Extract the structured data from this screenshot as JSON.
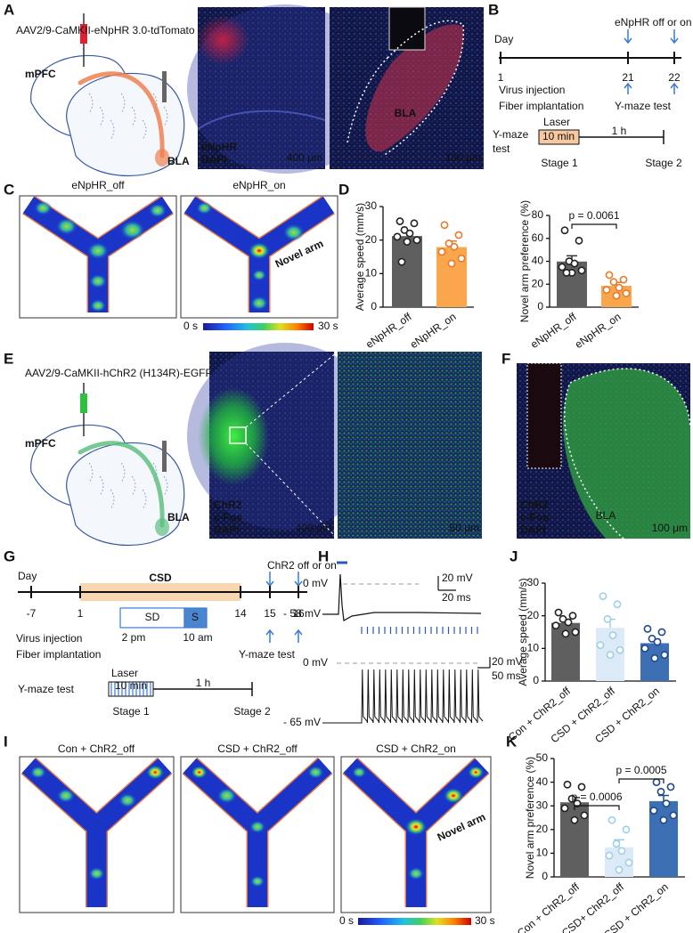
{
  "figure": {
    "A": {
      "label": "A",
      "virus": "AAV2/9-CaMKII-eNpHR 3.0-tdTomato",
      "source": "mPFC",
      "target": "BLA",
      "stains": [
        "eNpHR",
        "DAPI"
      ],
      "scale_low": "400 μm",
      "region": "BLA",
      "scale_high": "100 μm"
    },
    "B": {
      "label": "B",
      "manipulation": "eNpHR off or on",
      "day": "Day",
      "days": [
        1,
        21,
        22
      ],
      "events": [
        "Virus injection",
        "Fiber implantation"
      ],
      "test": "Y-maze test",
      "protocol_title": [
        "Y-maze",
        "test"
      ],
      "laser": "Laser",
      "laser_duration": "10 min",
      "interval": "1 h",
      "stages": [
        "Stage 1",
        "Stage 2"
      ]
    },
    "C": {
      "label": "C",
      "groups": [
        "eNpHR_off",
        "eNpHR_on"
      ],
      "novel_arm": "Novel arm",
      "colorbar": [
        "0 s",
        "30 s"
      ]
    },
    "D": {
      "label": "D"
    },
    "E": {
      "label": "E",
      "virus": "AAV2/9-CaMKII-hChR2 (H134R)-EGFP",
      "source": "mPFC",
      "target": "BLA",
      "stains": [
        "ChR2",
        "c-Fos",
        "DAPI"
      ],
      "scale_low": "400 μm",
      "scale_high": "50 μm"
    },
    "F": {
      "label": "F",
      "stains": [
        "ChR2",
        "c-Fos",
        "DAPI"
      ],
      "region": "BLA",
      "scale": "100 μm"
    },
    "G": {
      "label": "G",
      "day": "Day",
      "stress": "CSD",
      "manipulation": "ChR2 off or on",
      "days": [
        -7,
        1,
        14,
        15,
        16
      ],
      "sd": "SD",
      "s": "S",
      "times": [
        "2 pm",
        "10 am"
      ],
      "events": [
        "Virus injection",
        "Fiber implantation"
      ],
      "test": "Y-maze test",
      "protocol_title": "Y-maze test",
      "laser": "Laser",
      "laser_duration": "10 min",
      "interval": "1 h",
      "stages": [
        "Stage 1",
        "Stage 2"
      ]
    },
    "H": {
      "label": "H",
      "top_trace": {
        "zero": "0 mV",
        "rest": "- 58 mV",
        "scale_v": "20 mV",
        "scale_t": "20 ms"
      },
      "bottom_trace": {
        "zero": "0 mV",
        "rest": "- 65 mV",
        "scale_v": "20 mV",
        "scale_t": "50 ms"
      }
    },
    "I": {
      "label": "I",
      "groups": [
        "Con + ChR2_off",
        "CSD + ChR2_off",
        "CSD + ChR2_on"
      ],
      "novel_arm": "Novel arm",
      "colorbar": [
        "0 s",
        "30 s"
      ]
    },
    "J": {
      "label": "J"
    },
    "K": {
      "label": "K"
    }
  },
  "chart_data": [
    {
      "type": "bar",
      "y_label": "Average speed (mm/s)",
      "categories": [
        "eNpHR_off",
        "eNpHR_on"
      ],
      "values": [
        21.2,
        17.9
      ],
      "errors": [
        1.3,
        1.8
      ],
      "points": [
        [
          25.6,
          25.0,
          23.0,
          22.0,
          21.0,
          20.0,
          19.5,
          13.5
        ],
        [
          24.5,
          21.5,
          19.0,
          18.0,
          16.5,
          14.5,
          13.0
        ]
      ],
      "colors": [
        "#5f5f5f",
        "#f9a64c"
      ],
      "point_colors": [
        "#222222",
        "#e8782a"
      ],
      "ylim": [
        0,
        30
      ],
      "yticks": [
        0,
        10,
        20,
        30
      ]
    },
    {
      "type": "bar",
      "y_label": "Novel arm preference (%)",
      "categories": [
        "eNpHR_off",
        "eNpHR_on"
      ],
      "values": [
        39.8,
        18.6
      ],
      "errors": [
        5.0,
        3.0
      ],
      "points": [
        [
          67,
          58,
          40,
          38,
          35,
          32,
          30,
          30
        ],
        [
          28,
          24,
          22,
          17,
          15,
          12,
          10
        ]
      ],
      "colors": [
        "#5f5f5f",
        "#f9a64c"
      ],
      "point_colors": [
        "#222222",
        "#e8782a"
      ],
      "ylim": [
        0,
        80
      ],
      "yticks": [
        0,
        20,
        40,
        60,
        80
      ],
      "annotations": [
        "p = 0.0061"
      ]
    },
    {
      "type": "bar",
      "y_label": "Average speed (mm/s)",
      "categories": [
        "Con + ChR2_off",
        "CSD + ChR2_off",
        "CSD + ChR2_on"
      ],
      "values": [
        17.8,
        16.3,
        11.6
      ],
      "errors": [
        1.1,
        2.6,
        1.2
      ],
      "points": [
        [
          21,
          20,
          19,
          18,
          17,
          15,
          14.5
        ],
        [
          26,
          23.5,
          19,
          14,
          11,
          9.5,
          8
        ],
        [
          16,
          15,
          13,
          12,
          10,
          8,
          7
        ]
      ],
      "colors": [
        "#5f5f5f",
        "#dbeaf6",
        "#3d6fb4"
      ],
      "point_colors": [
        "#222222",
        "#9dd0e8",
        "#1e4a8a"
      ],
      "ylim": [
        0,
        30
      ],
      "yticks": [
        0,
        10,
        20,
        30
      ]
    },
    {
      "type": "bar",
      "y_label": "Novel arm preference (%)",
      "categories": [
        "Con + ChR2_off",
        "CSD+ ChR2_off",
        "CSD + ChR2_on"
      ],
      "values": [
        31.5,
        12.5,
        32.0
      ],
      "errors": [
        2.0,
        3.2,
        2.4
      ],
      "points": [
        [
          39,
          38,
          33,
          31,
          29,
          26,
          24
        ],
        [
          24,
          20,
          14,
          11,
          9,
          6,
          3
        ],
        [
          40,
          38,
          36,
          31,
          28,
          26,
          24
        ]
      ],
      "colors": [
        "#5f5f5f",
        "#dbeaf6",
        "#3d6fb4"
      ],
      "point_colors": [
        "#222222",
        "#9dd0e8",
        "#1e4a8a"
      ],
      "ylim": [
        0,
        50
      ],
      "yticks": [
        0,
        10,
        20,
        30,
        40,
        50
      ],
      "annotations": [
        "p = 0.0006",
        "p = 0.0005"
      ]
    }
  ]
}
